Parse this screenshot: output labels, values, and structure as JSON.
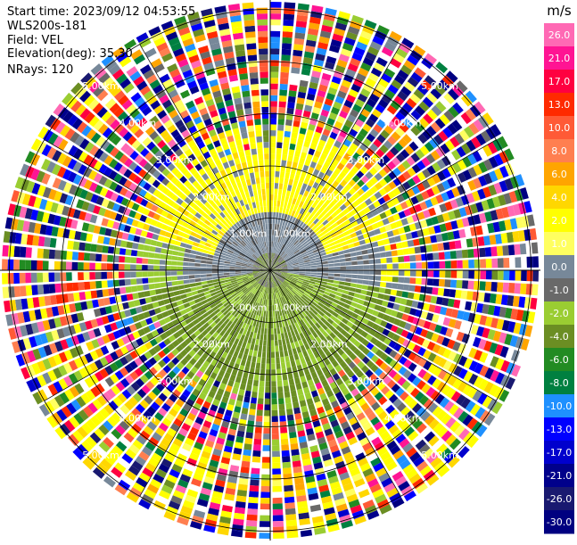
{
  "header": {
    "lines": [
      "Start time: 2023/09/12 04:53:55",
      "WLS200s-181",
      "Field: VEL",
      "Elevation(deg): 35.30",
      "NRays: 120"
    ]
  },
  "chart_data": {
    "type": "heatmap",
    "projection": "polar-ppi",
    "field": "VEL",
    "nrays": 120,
    "range_rings_km": [
      1,
      2,
      3,
      4,
      5
    ],
    "ring_labels": [
      "1.00km",
      "2.00km",
      "3.00km",
      "4.00km",
      "5.00km"
    ],
    "colorbar": {
      "unit": "m/s",
      "ticks": [
        "26.0",
        "21.0",
        "17.0",
        "13.0",
        "10.0",
        "8.0",
        "6.0",
        "4.0",
        "2.0",
        "1.0",
        "0.0",
        "-1.0",
        "-2.0",
        "-4.0",
        "-6.0",
        "-8.0",
        "-10.0",
        "-13.0",
        "-17.0",
        "-21.0",
        "-26.0",
        "-30.0"
      ],
      "colors": [
        "#ff69b4",
        "#ff1493",
        "#ff0040",
        "#ff2a00",
        "#ff5a36",
        "#ff7f50",
        "#ffa500",
        "#ffd700",
        "#ffff00",
        "#ffff60",
        "#778899",
        "#696969",
        "#9acd32",
        "#6b8e23",
        "#228b22",
        "#008040",
        "#1e90ff",
        "#0000ff",
        "#0000cd",
        "#00008b",
        "#191970",
        "#000080"
      ]
    }
  }
}
